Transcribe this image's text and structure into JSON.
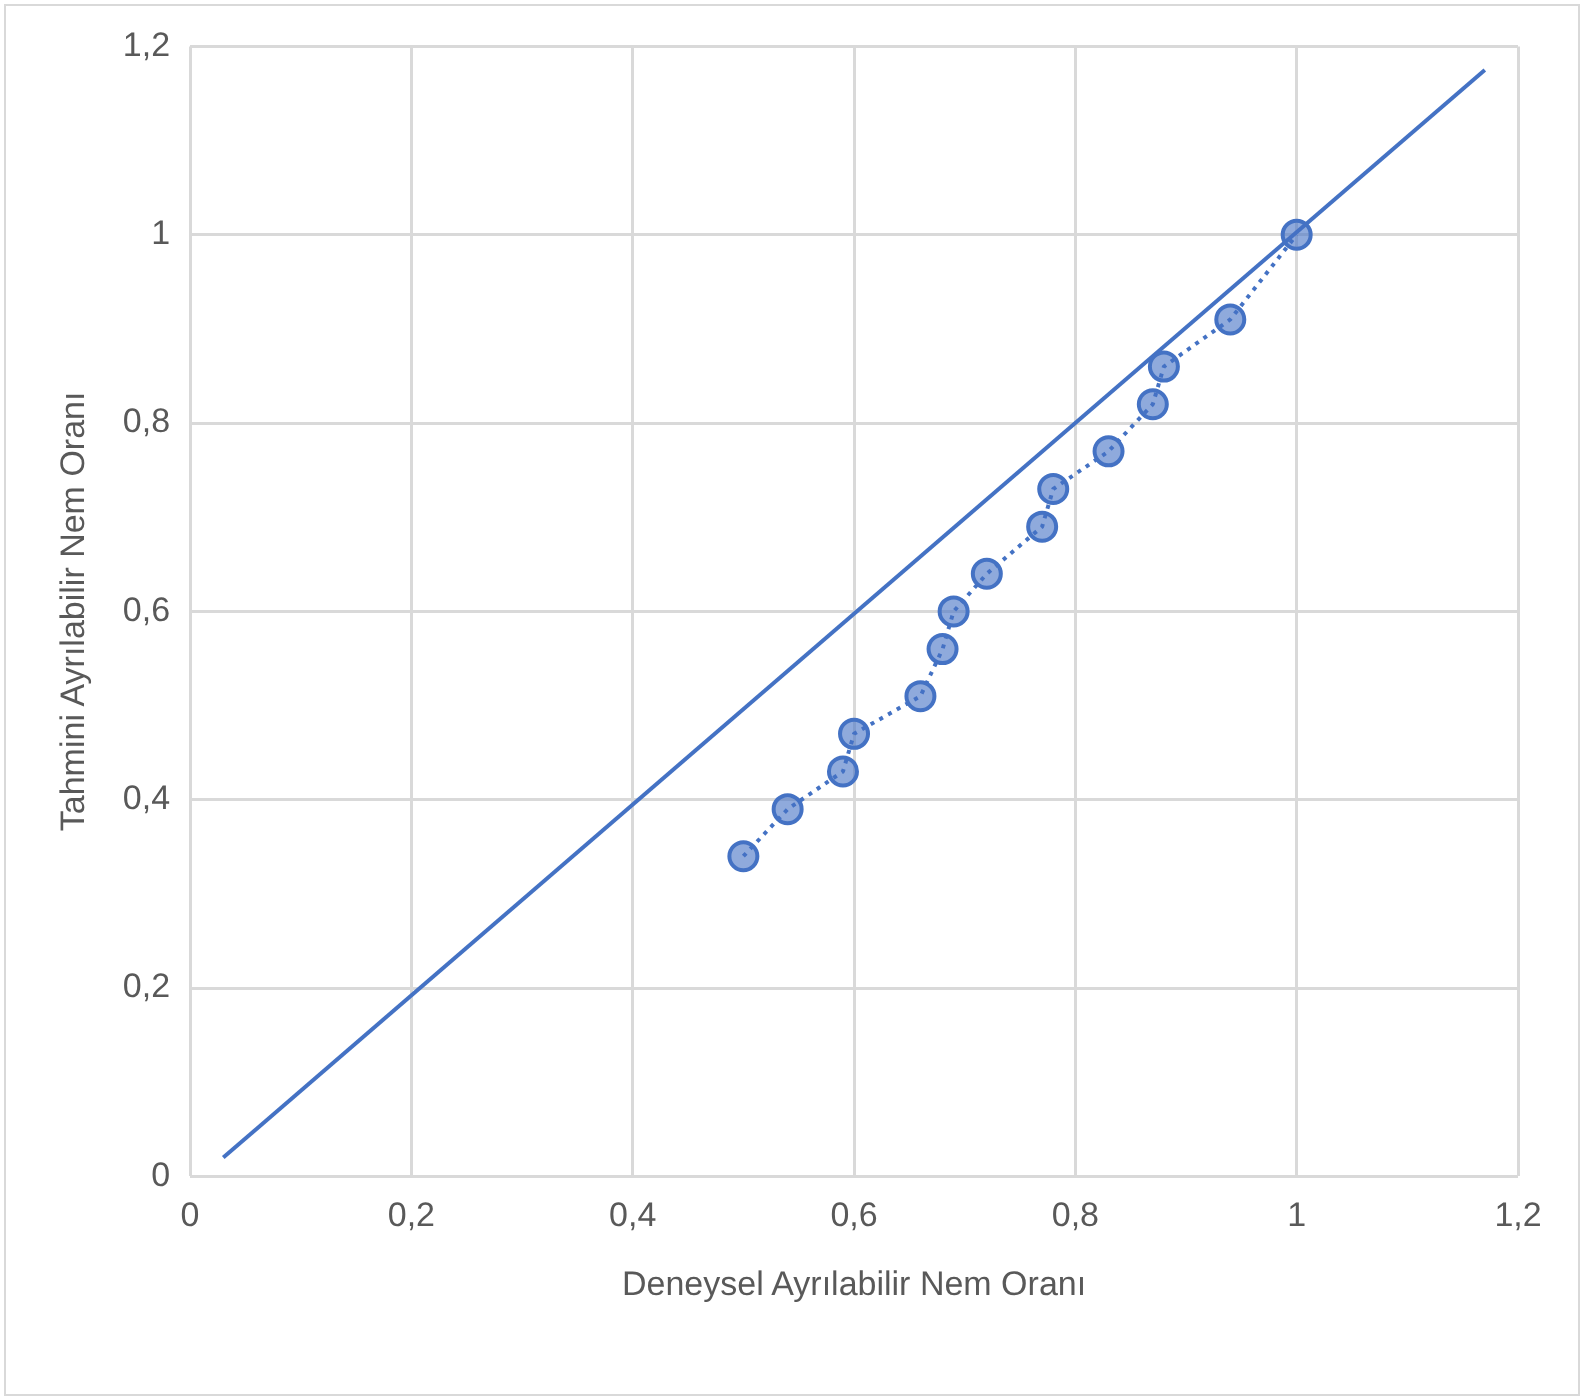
{
  "chart_data": {
    "type": "line",
    "xlabel": "Deneysel Ayrılabilir Nem Oranı",
    "ylabel": "Tahmini Ayrılabilir Nem Oranı",
    "xlim": [
      0,
      1.2
    ],
    "ylim": [
      0,
      1.2
    ],
    "xticks": [
      0,
      {
        "value": 0.2,
        "label": "0,2"
      },
      {
        "value": 0.4,
        "label": "0,4"
      },
      {
        "value": 0.6,
        "label": "0,6"
      },
      {
        "value": 0.8,
        "label": "0,8"
      },
      1,
      {
        "value": 1.2,
        "label": "1,2"
      }
    ],
    "yticks": [
      0,
      {
        "value": 0.2,
        "label": "0,2"
      },
      {
        "value": 0.4,
        "label": "0,4"
      },
      {
        "value": 0.6,
        "label": "0,6"
      },
      {
        "value": 0.8,
        "label": "0,8"
      },
      1,
      {
        "value": 1.2,
        "label": "1,2"
      }
    ],
    "grid": true,
    "legend": false,
    "series": [
      {
        "color": "#4472c4",
        "marker": "circle",
        "line_style": "dotted",
        "x": [
          0.5,
          0.54,
          0.59,
          0.6,
          0.66,
          0.68,
          0.69,
          0.72,
          0.77,
          0.78,
          0.83,
          0.87,
          0.88,
          0.94,
          1.0
        ],
        "values": [
          0.34,
          0.39,
          0.43,
          0.47,
          0.51,
          0.56,
          0.6,
          0.64,
          0.69,
          0.73,
          0.77,
          0.82,
          0.86,
          0.91,
          1.0
        ]
      },
      {
        "color": "#4472c4",
        "marker": "none",
        "line_style": "solid",
        "x": [
          0.03,
          1.17
        ],
        "values": [
          0.02,
          1.175
        ]
      }
    ]
  }
}
